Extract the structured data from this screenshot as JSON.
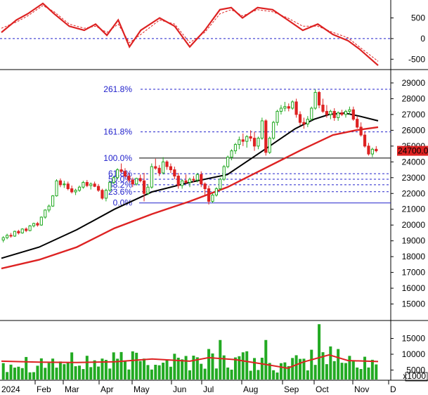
{
  "chart_data": {
    "type": "candlestick",
    "x_months": [
      "2024",
      "Feb",
      "Mar",
      "Apr",
      "May",
      "Jun",
      "Jul",
      "Aug",
      "Sep",
      "Oct",
      "Nov",
      "D"
    ],
    "last_price_label": "24700.00",
    "colors": {
      "up": "#22aa22",
      "down": "#dd2222",
      "ma_long": "#dd2222",
      "ma_short": "#000000",
      "fib": "#2222cc",
      "volume": "#22aa22",
      "last_price_bg": "#dd2222"
    },
    "price_axis": {
      "ticks": [
        15000,
        16000,
        17000,
        18000,
        19000,
        20000,
        21000,
        22000,
        23000,
        24000,
        25000,
        26000,
        27000,
        28000,
        29000
      ],
      "ylim": [
        14000,
        29800
      ]
    },
    "fibonacci": [
      {
        "label": "0.0%",
        "value": 21400
      },
      {
        "label": "23.6%",
        "value": 22110
      },
      {
        "label": "38.2%",
        "value": 22550
      },
      {
        "label": "50.0%",
        "value": 22900
      },
      {
        "label": "61.8%",
        "value": 23250
      },
      {
        "label": "100.0%",
        "value": 24240
      },
      {
        "label": "161.8%",
        "value": 25900
      },
      {
        "label": "261.8%",
        "value": 28600
      }
    ],
    "candles": [
      [
        19050,
        19300,
        18900,
        19200
      ],
      [
        19200,
        19450,
        19100,
        19350
      ],
      [
        19350,
        19500,
        19200,
        19300
      ],
      [
        19300,
        19650,
        19250,
        19600
      ],
      [
        19600,
        19700,
        19400,
        19500
      ],
      [
        19500,
        19800,
        19450,
        19750
      ],
      [
        19750,
        19850,
        19550,
        19650
      ],
      [
        19650,
        20000,
        19600,
        19950
      ],
      [
        19950,
        20150,
        19850,
        20100
      ],
      [
        20100,
        20200,
        19900,
        20000
      ],
      [
        20000,
        20550,
        19950,
        20500
      ],
      [
        20500,
        21000,
        20400,
        20950
      ],
      [
        20950,
        21300,
        20800,
        21200
      ],
      [
        21200,
        21900,
        21150,
        21850
      ],
      [
        21850,
        22900,
        21800,
        22800
      ],
      [
        22800,
        22950,
        22400,
        22550
      ],
      [
        22550,
        22800,
        22350,
        22600
      ],
      [
        22600,
        22750,
        22200,
        22300
      ],
      [
        22300,
        22500,
        22000,
        22100
      ],
      [
        22100,
        22300,
        21900,
        22200
      ],
      [
        22200,
        22500,
        22100,
        22400
      ],
      [
        22400,
        22800,
        22300,
        22700
      ],
      [
        22700,
        22850,
        22400,
        22500
      ],
      [
        22500,
        22700,
        22250,
        22600
      ],
      [
        22600,
        22750,
        22400,
        22450
      ],
      [
        22450,
        22600,
        22100,
        22200
      ],
      [
        22200,
        22300,
        21600,
        21700
      ],
      [
        21700,
        22300,
        21500,
        22200
      ],
      [
        22200,
        22800,
        22100,
        22700
      ],
      [
        22700,
        23100,
        22600,
        23000
      ],
      [
        23000,
        23600,
        22900,
        23500
      ],
      [
        23500,
        23900,
        23300,
        23400
      ],
      [
        23400,
        23600,
        23000,
        23100
      ],
      [
        23100,
        23300,
        22700,
        22850
      ],
      [
        22850,
        23000,
        22400,
        22600
      ],
      [
        22600,
        23000,
        22500,
        22950
      ],
      [
        22950,
        23200,
        22700,
        22800
      ],
      [
        22800,
        23300,
        21500,
        22000
      ],
      [
        22000,
        22600,
        21900,
        22400
      ],
      [
        22400,
        23900,
        22300,
        23700
      ],
      [
        23700,
        24200,
        23500,
        23600
      ],
      [
        23600,
        23800,
        23100,
        23300
      ],
      [
        23300,
        24300,
        23200,
        24000
      ],
      [
        24000,
        24100,
        23500,
        23700
      ],
      [
        23700,
        23900,
        23300,
        23500
      ],
      [
        23500,
        23700,
        22900,
        23100
      ],
      [
        23100,
        23300,
        22300,
        22500
      ],
      [
        22500,
        22900,
        22300,
        22800
      ],
      [
        22800,
        23200,
        22600,
        22700
      ],
      [
        22700,
        23000,
        22400,
        22900
      ],
      [
        22900,
        23100,
        22700,
        22850
      ],
      [
        22850,
        23300,
        22700,
        23200
      ],
      [
        23200,
        23400,
        22400,
        22600
      ],
      [
        22600,
        22700,
        21900,
        22300
      ],
      [
        22300,
        22500,
        21300,
        21500
      ],
      [
        21500,
        22000,
        21400,
        21900
      ],
      [
        21900,
        22400,
        21800,
        22300
      ],
      [
        22300,
        23000,
        22200,
        22900
      ],
      [
        22900,
        23800,
        22800,
        23700
      ],
      [
        23700,
        24400,
        23600,
        24300
      ],
      [
        24300,
        24800,
        24100,
        24700
      ],
      [
        24700,
        25200,
        24500,
        25100
      ],
      [
        25100,
        25600,
        24800,
        25400
      ],
      [
        25400,
        25800,
        25000,
        25300
      ],
      [
        25300,
        25700,
        24900,
        25600
      ],
      [
        25600,
        26000,
        25300,
        25500
      ],
      [
        25500,
        25900,
        24700,
        25000
      ],
      [
        25000,
        25600,
        24800,
        25500
      ],
      [
        25500,
        26800,
        25400,
        26600
      ],
      [
        26600,
        26700,
        24400,
        24600
      ],
      [
        24600,
        25600,
        24500,
        25500
      ],
      [
        25500,
        26600,
        25400,
        26500
      ],
      [
        26500,
        27300,
        26300,
        27200
      ],
      [
        27200,
        27600,
        27000,
        27400
      ],
      [
        27400,
        27800,
        27200,
        27500
      ],
      [
        27500,
        27700,
        27200,
        27400
      ],
      [
        27400,
        27900,
        27300,
        27800
      ],
      [
        27800,
        28000,
        26800,
        27000
      ],
      [
        27000,
        27200,
        26300,
        26500
      ],
      [
        26500,
        26800,
        26100,
        26400
      ],
      [
        26400,
        26900,
        26200,
        26700
      ],
      [
        26700,
        27500,
        26600,
        27400
      ],
      [
        27400,
        28600,
        27300,
        28400
      ],
      [
        28400,
        28500,
        27400,
        27600
      ],
      [
        27600,
        28000,
        27100,
        27200
      ],
      [
        27200,
        27600,
        26800,
        27000
      ],
      [
        27000,
        27300,
        26700,
        27200
      ],
      [
        27200,
        27400,
        26600,
        26800
      ],
      [
        26800,
        27200,
        26600,
        27100
      ],
      [
        27100,
        27300,
        26900,
        27000
      ],
      [
        27000,
        27300,
        26800,
        27200
      ],
      [
        27200,
        27500,
        27000,
        27300
      ],
      [
        27300,
        27500,
        26600,
        26700
      ],
      [
        26700,
        26900,
        26100,
        26200
      ],
      [
        26200,
        26500,
        25600,
        25700
      ],
      [
        25700,
        25900,
        24900,
        25000
      ],
      [
        25000,
        25200,
        24400,
        24500
      ],
      [
        24500,
        24900,
        24300,
        24800
      ],
      [
        24800,
        25000,
        24600,
        24700
      ]
    ],
    "ma_short": [
      [
        0,
        17900
      ],
      [
        0.1,
        18600
      ],
      [
        0.2,
        19700
      ],
      [
        0.3,
        21000
      ],
      [
        0.4,
        22100
      ],
      [
        0.5,
        22700
      ],
      [
        0.6,
        23200
      ],
      [
        0.7,
        24800
      ],
      [
        0.78,
        26100
      ],
      [
        0.83,
        26700
      ],
      [
        0.87,
        27000
      ],
      [
        0.91,
        27100
      ],
      [
        0.95,
        26900
      ],
      [
        1.0,
        26600
      ]
    ],
    "ma_long": [
      [
        0,
        17250
      ],
      [
        0.1,
        17800
      ],
      [
        0.2,
        18600
      ],
      [
        0.3,
        19800
      ],
      [
        0.4,
        20700
      ],
      [
        0.5,
        21500
      ],
      [
        0.6,
        22400
      ],
      [
        0.7,
        23600
      ],
      [
        0.8,
        24800
      ],
      [
        0.88,
        25700
      ],
      [
        0.94,
        26000
      ],
      [
        1.0,
        26200
      ]
    ],
    "oscillator": {
      "ticks": [
        -500,
        0,
        500
      ],
      "ylim": [
        -700,
        900
      ],
      "main": [
        [
          0,
          150
        ],
        [
          0.04,
          450
        ],
        [
          0.07,
          600
        ],
        [
          0.11,
          850
        ],
        [
          0.14,
          600
        ],
        [
          0.18,
          300
        ],
        [
          0.22,
          200
        ],
        [
          0.25,
          350
        ],
        [
          0.28,
          80
        ],
        [
          0.31,
          450
        ],
        [
          0.34,
          -200
        ],
        [
          0.37,
          200
        ],
        [
          0.42,
          500
        ],
        [
          0.46,
          300
        ],
        [
          0.5,
          -200
        ],
        [
          0.54,
          200
        ],
        [
          0.58,
          700
        ],
        [
          0.61,
          750
        ],
        [
          0.64,
          500
        ],
        [
          0.68,
          750
        ],
        [
          0.72,
          700
        ],
        [
          0.76,
          450
        ],
        [
          0.8,
          200
        ],
        [
          0.84,
          350
        ],
        [
          0.88,
          100
        ],
        [
          0.92,
          -50
        ],
        [
          0.95,
          -250
        ],
        [
          1.0,
          -650
        ]
      ],
      "signal": [
        [
          0,
          250
        ],
        [
          0.04,
          400
        ],
        [
          0.07,
          550
        ],
        [
          0.11,
          800
        ],
        [
          0.14,
          650
        ],
        [
          0.18,
          350
        ],
        [
          0.22,
          250
        ],
        [
          0.25,
          300
        ],
        [
          0.28,
          150
        ],
        [
          0.31,
          350
        ],
        [
          0.34,
          -100
        ],
        [
          0.37,
          100
        ],
        [
          0.42,
          450
        ],
        [
          0.46,
          350
        ],
        [
          0.5,
          -100
        ],
        [
          0.54,
          150
        ],
        [
          0.58,
          600
        ],
        [
          0.61,
          700
        ],
        [
          0.64,
          550
        ],
        [
          0.68,
          700
        ],
        [
          0.72,
          650
        ],
        [
          0.76,
          500
        ],
        [
          0.8,
          300
        ],
        [
          0.84,
          300
        ],
        [
          0.88,
          150
        ],
        [
          0.92,
          20
        ],
        [
          0.95,
          -200
        ],
        [
          1.0,
          -550
        ]
      ]
    },
    "volume": {
      "ticks": [
        5000,
        10000,
        15000
      ],
      "unit_label": "x1000",
      "ylim": [
        2000,
        20000
      ],
      "ma_line": [
        [
          0,
          7800
        ],
        [
          0.1,
          7500
        ],
        [
          0.2,
          7400
        ],
        [
          0.3,
          7600
        ],
        [
          0.4,
          8500
        ],
        [
          0.5,
          7800
        ],
        [
          0.55,
          8900
        ],
        [
          0.62,
          8300
        ],
        [
          0.7,
          6800
        ],
        [
          0.76,
          5600
        ],
        [
          0.8,
          7500
        ],
        [
          0.87,
          9800
        ],
        [
          0.92,
          8000
        ],
        [
          1.0,
          7700
        ]
      ]
    }
  }
}
